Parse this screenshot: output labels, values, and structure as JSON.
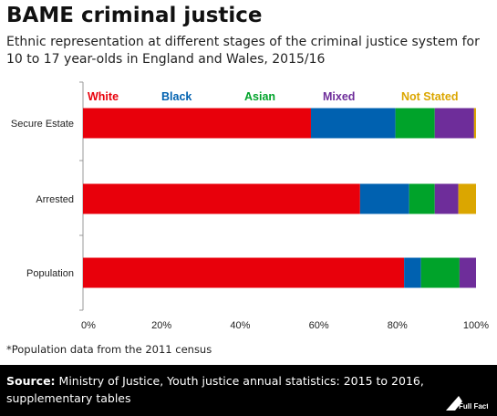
{
  "title": "BAME criminal justice",
  "subtitle": "Ethnic representation at different stages of the criminal justice system for 10 to 17 year-olds in England and Wales, 2015/16",
  "footnote": "*Population data from the 2011 census",
  "source": {
    "label": "Source:",
    "text": "Ministry of Justice, Youth justice annual statistics: 2015 to 2016, supplementary tables"
  },
  "logo_text": "Full Fact",
  "colors": {
    "White": "#e8000b",
    "Black": "#0061b0",
    "Asian": "#00a32a",
    "Mixed": "#6e2d9a",
    "Not Stated": "#dba600"
  },
  "chart_data": {
    "type": "bar",
    "orientation": "horizontal",
    "stacked": true,
    "title": "BAME criminal justice",
    "subtitle": "Ethnic representation at different stages of the criminal justice system for 10 to 17 year-olds in England and Wales, 2015/16",
    "categories": [
      "Secure Estate",
      "Arrested",
      "Population"
    ],
    "series": [
      {
        "name": "White",
        "values": [
          58,
          70.5,
          81.7
        ]
      },
      {
        "name": "Black",
        "values": [
          21.5,
          12.5,
          4.3
        ]
      },
      {
        "name": "Asian",
        "values": [
          10,
          6.5,
          9.8
        ]
      },
      {
        "name": "Mixed",
        "values": [
          10,
          6,
          4.2
        ]
      },
      {
        "name": "Not Stated",
        "values": [
          0.5,
          4.5,
          0
        ]
      }
    ],
    "x_ticks": [
      "0%",
      "20%",
      "40%",
      "60%",
      "80%",
      "100%"
    ],
    "xlim": [
      0,
      100
    ],
    "unit": "%",
    "legend": "inside-top",
    "grid": false
  }
}
